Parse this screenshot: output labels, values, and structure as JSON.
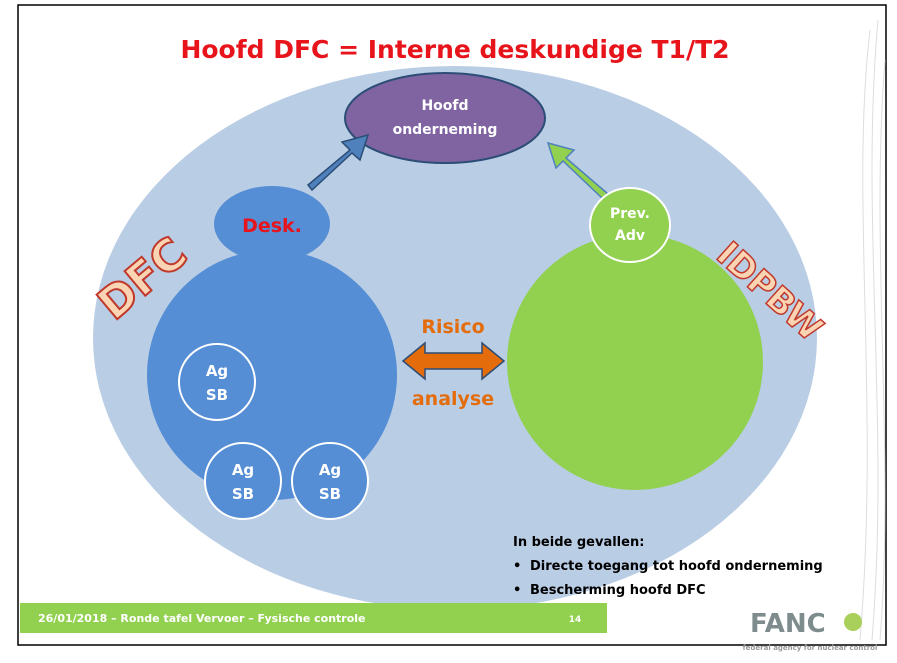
{
  "title": "Hoofd DFC = Interne deskundige  T1/T2",
  "nodes": {
    "head": {
      "lines": [
        "Hoofd",
        "onderneming"
      ]
    },
    "desk": {
      "label": "Desk."
    },
    "prev": {
      "lines": [
        "Prev.",
        "Adv"
      ]
    },
    "dfc": {
      "label": "DFC"
    },
    "idpbw": {
      "label": "IDPBW"
    },
    "risk": {
      "lines": [
        "Risico",
        "analyse"
      ]
    },
    "agents": [
      {
        "lines": [
          "Ag",
          "SB"
        ]
      },
      {
        "lines": [
          "Ag",
          "SB"
        ]
      },
      {
        "lines": [
          "Ag",
          "SB"
        ]
      }
    ]
  },
  "note": {
    "heading": "In beide gevallen:",
    "bullets": [
      "Directe toegang tot hoofd onderneming",
      "Bescherming hoofd DFC"
    ]
  },
  "footer": {
    "text": "26/01/2018 – Ronde tafel Vervoer – Fysische controle",
    "page": "14"
  },
  "logo": {
    "name": "FANC",
    "tagline": "federal agency for nuclear control"
  }
}
